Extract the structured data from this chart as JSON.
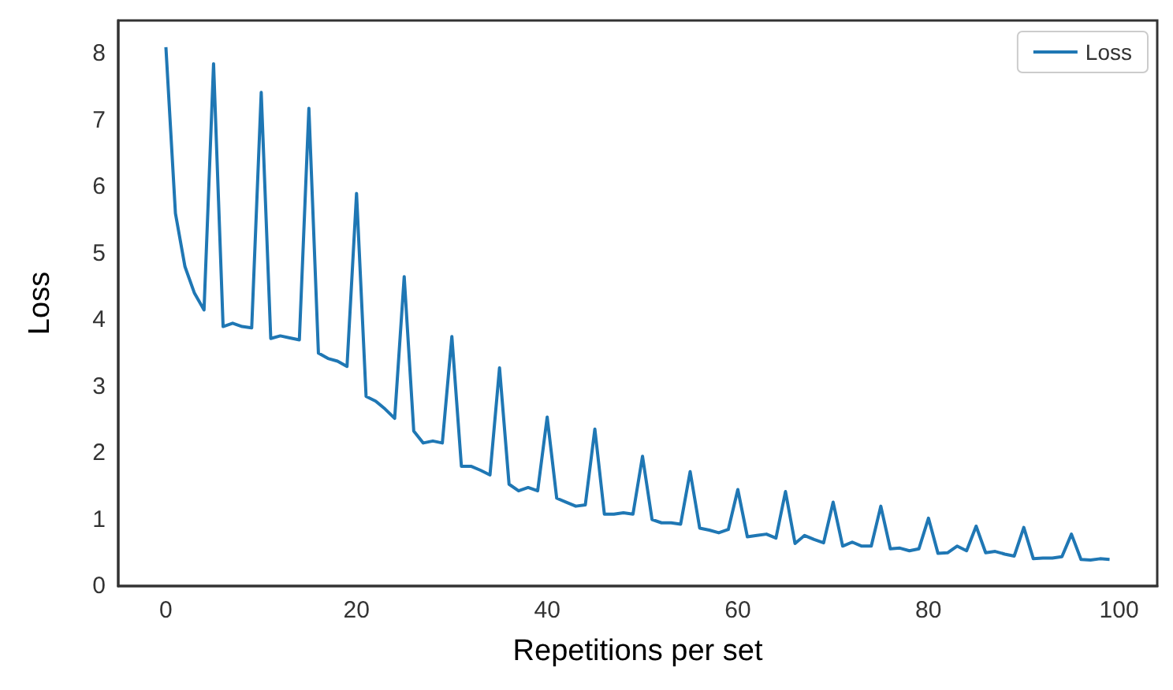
{
  "chart_data": {
    "type": "line",
    "xlabel": "Repetitions per set",
    "ylabel": "Loss",
    "x": [
      0,
      1,
      2,
      3,
      4,
      5,
      6,
      7,
      8,
      9,
      10,
      11,
      12,
      13,
      14,
      15,
      16,
      17,
      18,
      19,
      20,
      21,
      22,
      23,
      24,
      25,
      26,
      27,
      28,
      29,
      30,
      31,
      32,
      33,
      34,
      35,
      36,
      37,
      38,
      39,
      40,
      41,
      42,
      43,
      44,
      45,
      46,
      47,
      48,
      49,
      50,
      51,
      52,
      53,
      54,
      55,
      56,
      57,
      58,
      59,
      60,
      61,
      62,
      63,
      64,
      65,
      66,
      67,
      68,
      69,
      70,
      71,
      72,
      73,
      74,
      75,
      76,
      77,
      78,
      79,
      80,
      81,
      82,
      83,
      84,
      85,
      86,
      87,
      88,
      89,
      90,
      91,
      92,
      93,
      94,
      95,
      96,
      97,
      98,
      99
    ],
    "series": [
      {
        "name": "Loss",
        "color": "#1f77b4",
        "values": [
          8.1,
          5.6,
          4.8,
          4.4,
          4.15,
          7.85,
          3.9,
          3.95,
          3.9,
          3.88,
          7.42,
          3.72,
          3.76,
          3.73,
          3.7,
          7.18,
          3.5,
          3.42,
          3.38,
          3.3,
          5.9,
          2.85,
          2.78,
          2.66,
          2.52,
          4.65,
          2.33,
          2.15,
          2.18,
          2.15,
          3.75,
          1.8,
          1.8,
          1.74,
          1.67,
          3.28,
          1.53,
          1.43,
          1.48,
          1.43,
          2.54,
          1.32,
          1.26,
          1.2,
          1.22,
          2.36,
          1.08,
          1.08,
          1.1,
          1.08,
          1.95,
          1.0,
          0.95,
          0.95,
          0.93,
          1.72,
          0.87,
          0.84,
          0.8,
          0.85,
          1.45,
          0.74,
          0.76,
          0.78,
          0.72,
          1.42,
          0.64,
          0.76,
          0.7,
          0.65,
          1.26,
          0.6,
          0.66,
          0.6,
          0.6,
          1.2,
          0.56,
          0.57,
          0.53,
          0.56,
          1.02,
          0.49,
          0.5,
          0.6,
          0.53,
          0.9,
          0.5,
          0.52,
          0.48,
          0.45,
          0.88,
          0.41,
          0.42,
          0.42,
          0.44,
          0.78,
          0.4,
          0.39,
          0.41,
          0.4
        ]
      }
    ],
    "xlim": [
      -5,
      104
    ],
    "xticks": [
      0,
      20,
      40,
      60,
      80,
      100
    ],
    "ylim": [
      0,
      8.5
    ],
    "yticks": [
      0,
      1,
      2,
      3,
      4,
      5,
      6,
      7,
      8
    ],
    "grid": false,
    "legend": "top right",
    "marker": "none",
    "line_style": "solid"
  }
}
